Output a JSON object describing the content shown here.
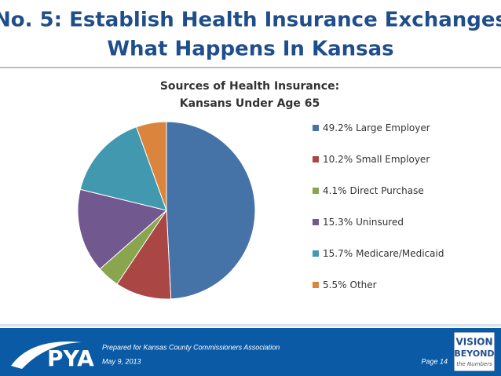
{
  "header": {
    "title_lines": [
      "No. 5:  Establish Health Insurance Exchanges",
      "What Happens In Kansas"
    ]
  },
  "chart_data": {
    "type": "pie",
    "title_lines": [
      "Sources of Health Insurance:",
      "Kansans Under Age 65"
    ],
    "categories": [
      "Large Employer",
      "Small Employer",
      "Direct Purchase",
      "Uninsured",
      "Medicare/Medicaid",
      "Other"
    ],
    "values": [
      49.2,
      10.2,
      4.1,
      15.3,
      15.7,
      5.5
    ],
    "value_labels": [
      "49.2%",
      "10.2%",
      "4.1%",
      "15.3%",
      "15.7%",
      "5.5%"
    ],
    "colors": [
      "#4572a7",
      "#aa4643",
      "#89a54e",
      "#71588f",
      "#4198af",
      "#db843d"
    ],
    "legend": "right"
  },
  "footer": {
    "logo": "PYA",
    "note": "Prepared for Kansas County Commissioners Association",
    "date": "May 9, 2013",
    "page": "Page 14",
    "badge": [
      "VISION",
      "BEYOND",
      "the Numbers"
    ]
  }
}
